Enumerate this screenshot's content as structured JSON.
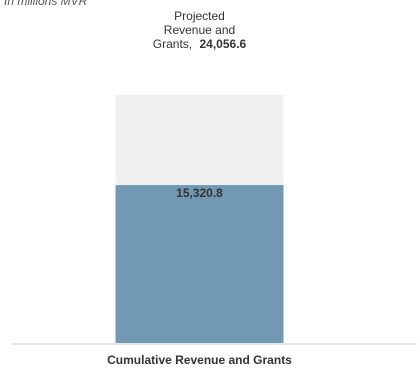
{
  "chart_data": {
    "type": "bar",
    "subtitle": "In millions MVR",
    "categories": [
      "Cumulative Revenue and Grants"
    ],
    "series": [
      {
        "name": "Projected Revenue and Grants,",
        "color": "#f0f0f0",
        "values": [
          24056.6
        ],
        "value_labels": [
          "24,056.6"
        ]
      },
      {
        "color": "#7299b4",
        "values": [
          15320.8
        ],
        "value_labels": [
          "15,320.8"
        ]
      }
    ],
    "ylim": [
      0,
      24056.6
    ]
  }
}
